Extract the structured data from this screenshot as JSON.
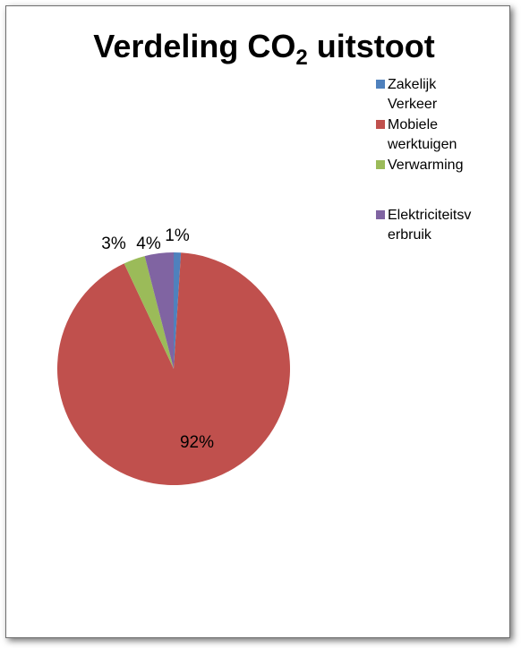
{
  "chart_data": {
    "type": "pie",
    "title": "Verdeling CO",
    "title_subscript": "2",
    "title_suffix": " uitstoot",
    "legend_position": "top-right",
    "categories": [
      "Zakelijk Verkeer",
      "Mobiele werktuigen",
      "Verwarming",
      "Elektriciteitsverbruik"
    ],
    "legend_lines": [
      [
        "Zakelijk",
        "Verkeer"
      ],
      [
        "Mobiele",
        "werktuigen"
      ],
      [
        "Verwarming"
      ],
      [
        "Elektriciteitsv",
        "erbruik"
      ]
    ],
    "values": [
      1,
      92,
      3,
      4
    ],
    "data_labels": [
      "1%",
      "92%",
      "3%",
      "4%"
    ],
    "colors": [
      "#4f81bd",
      "#c0504d",
      "#9bbb59",
      "#8064a2"
    ]
  }
}
